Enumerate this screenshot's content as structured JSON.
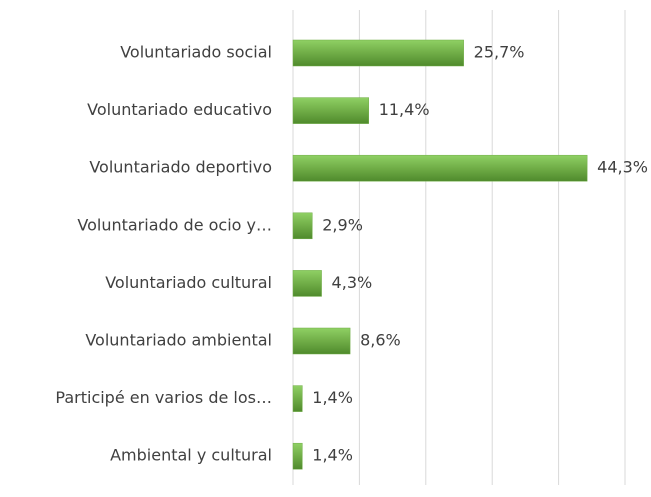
{
  "chart_data": {
    "type": "hbar",
    "categories": [
      "Voluntariado social",
      "Voluntariado educativo",
      "Voluntariado deportivo",
      "Voluntariado de ocio y…",
      "Voluntariado cultural",
      "Voluntariado ambiental",
      "Participé en varios de los…",
      "Ambiental y cultural"
    ],
    "values": [
      25.7,
      11.4,
      44.3,
      2.9,
      4.3,
      8.6,
      1.4,
      1.4
    ],
    "value_labels": [
      "25,7%",
      "11,4%",
      "44,3%",
      "2,9%",
      "4,3%",
      "8,6%",
      "1,4%",
      "1,4%"
    ],
    "color": "#70ad47",
    "xlim": [
      0,
      50
    ],
    "xticks": [
      0,
      10,
      20,
      30,
      40,
      50
    ],
    "grid": true
  }
}
